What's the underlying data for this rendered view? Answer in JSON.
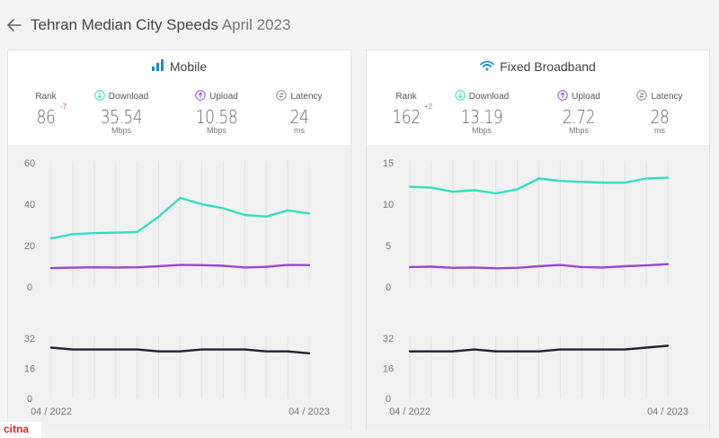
{
  "header": {
    "title": "Tehran Median City Speeds",
    "month": "April 2023"
  },
  "colors": {
    "download": "#2fe0c3",
    "upload": "#9a47d6",
    "latency": "#1e2033",
    "accent": "#1a8bd6",
    "rank_negative": "#e24a4a"
  },
  "mobile": {
    "title": "Mobile",
    "icon": "signal-bars-icon",
    "rank_label": "Rank",
    "rank": "86",
    "rank_change": "-7",
    "download_label": "Download",
    "download": "35.54",
    "download_unit": "Mbps",
    "upload_label": "Upload",
    "upload": "10.58",
    "upload_unit": "Mbps",
    "latency_label": "Latency",
    "latency": "24",
    "latency_unit": "ms"
  },
  "fixed": {
    "title": "Fixed Broadband",
    "icon": "wifi-icon",
    "rank_label": "Rank",
    "rank": "162",
    "rank_change": "+2",
    "download_label": "Download",
    "download": "13.19",
    "download_unit": "Mbps",
    "upload_label": "Upload",
    "upload": "2.72",
    "upload_unit": "Mbps",
    "latency_label": "Latency",
    "latency": "28",
    "latency_unit": "ms"
  },
  "chart_data": [
    {
      "type": "line",
      "panel": "mobile-speed",
      "x": [
        "04/2022",
        "05/2022",
        "06/2022",
        "07/2022",
        "08/2022",
        "09/2022",
        "10/2022",
        "11/2022",
        "12/2022",
        "01/2023",
        "02/2023",
        "03/2023",
        "04/2023"
      ],
      "x_tick_labels": [
        "04 / 2022",
        "04 / 2023"
      ],
      "ylim": [
        0,
        60
      ],
      "yticks": [
        0,
        20,
        40,
        60
      ],
      "grid": "vertical",
      "series": [
        {
          "key": "download",
          "values": [
            23.5,
            25.5,
            26,
            26.2,
            26.5,
            34,
            43,
            40,
            38,
            34.8,
            34,
            37,
            35.5
          ]
        },
        {
          "key": "upload",
          "values": [
            9.1,
            9.3,
            9.5,
            9.4,
            9.5,
            10,
            10.6,
            10.5,
            10.2,
            9.4,
            9.7,
            10.6,
            10.5
          ]
        }
      ]
    },
    {
      "type": "line",
      "panel": "mobile-latency",
      "x": [
        "04/2022",
        "05/2022",
        "06/2022",
        "07/2022",
        "08/2022",
        "09/2022",
        "10/2022",
        "11/2022",
        "12/2022",
        "01/2023",
        "02/2023",
        "03/2023",
        "04/2023"
      ],
      "x_tick_labels": [
        "04 / 2022",
        "04 / 2023"
      ],
      "ylim": [
        0,
        32
      ],
      "yticks": [
        0,
        16,
        32
      ],
      "grid": "vertical",
      "series": [
        {
          "key": "latency",
          "values": [
            27,
            26,
            26,
            26,
            26,
            25,
            25,
            26,
            26,
            26,
            25,
            25,
            24
          ]
        }
      ]
    },
    {
      "type": "line",
      "panel": "fixed-speed",
      "x": [
        "04/2022",
        "05/2022",
        "06/2022",
        "07/2022",
        "08/2022",
        "09/2022",
        "10/2022",
        "11/2022",
        "12/2022",
        "01/2023",
        "02/2023",
        "03/2023",
        "04/2023"
      ],
      "x_tick_labels": [
        "04 / 2022",
        "04 / 2023"
      ],
      "ylim": [
        0,
        15
      ],
      "yticks": [
        0,
        5,
        10,
        15
      ],
      "grid": "vertical",
      "series": [
        {
          "key": "download",
          "values": [
            12.1,
            12.0,
            11.5,
            11.7,
            11.3,
            11.8,
            13.1,
            12.8,
            12.7,
            12.6,
            12.6,
            13.1,
            13.2
          ]
        },
        {
          "key": "upload",
          "values": [
            2.4,
            2.45,
            2.3,
            2.35,
            2.25,
            2.3,
            2.5,
            2.65,
            2.4,
            2.35,
            2.5,
            2.6,
            2.75
          ]
        }
      ]
    },
    {
      "type": "line",
      "panel": "fixed-latency",
      "x": [
        "04/2022",
        "05/2022",
        "06/2022",
        "07/2022",
        "08/2022",
        "09/2022",
        "10/2022",
        "11/2022",
        "12/2022",
        "01/2023",
        "02/2023",
        "03/2023",
        "04/2023"
      ],
      "x_tick_labels": [
        "04 / 2022",
        "04 / 2023"
      ],
      "ylim": [
        0,
        32
      ],
      "yticks": [
        0,
        16,
        32
      ],
      "grid": "vertical",
      "series": [
        {
          "key": "latency",
          "values": [
            25,
            25,
            25,
            26,
            25,
            25,
            25,
            26,
            26,
            26,
            26,
            27,
            28
          ]
        }
      ]
    }
  ],
  "watermark": "citna"
}
